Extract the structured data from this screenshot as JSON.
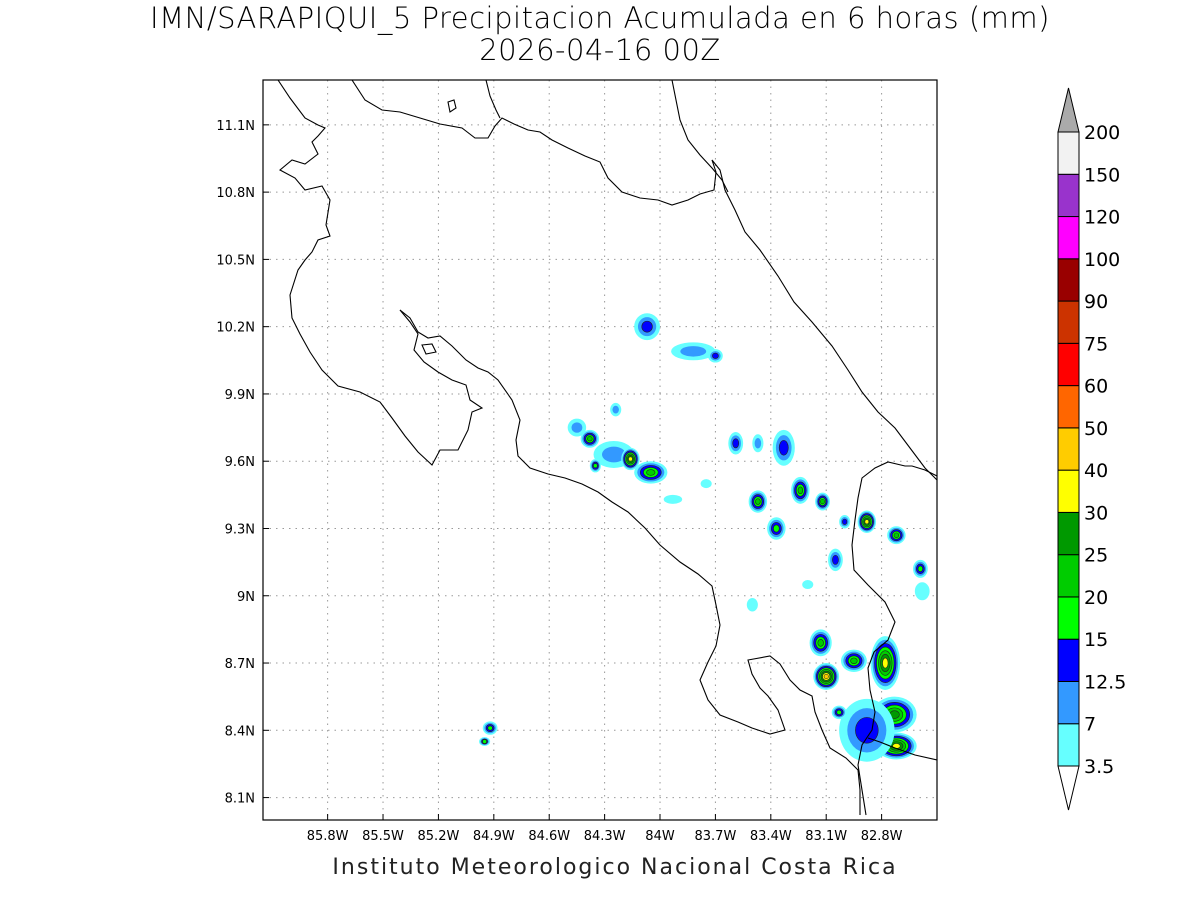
{
  "header": {
    "title": "IMN/SARAPIQUI_5 Precipitacion Acumulada en 6 horas (mm)",
    "subtitle": "2026-04-16 00Z"
  },
  "footer": {
    "text": "Instituto Meteorologico Nacional Costa Rica"
  },
  "map": {
    "lon_range": [
      -86.15,
      -82.5
    ],
    "lat_range": [
      8.0,
      11.3
    ],
    "lon_ticks": [
      {
        "value": -85.8,
        "label": "85.8W"
      },
      {
        "value": -85.5,
        "label": "85.5W"
      },
      {
        "value": -85.2,
        "label": "85.2W"
      },
      {
        "value": -84.9,
        "label": "84.9W"
      },
      {
        "value": -84.6,
        "label": "84.6W"
      },
      {
        "value": -84.3,
        "label": "84.3W"
      },
      {
        "value": -84.0,
        "label": "84W"
      },
      {
        "value": -83.7,
        "label": "83.7W"
      },
      {
        "value": -83.4,
        "label": "83.4W"
      },
      {
        "value": -83.1,
        "label": "83.1W"
      },
      {
        "value": -82.8,
        "label": "82.8W"
      }
    ],
    "lat_ticks": [
      {
        "value": 8.1,
        "label": "8.1N"
      },
      {
        "value": 8.4,
        "label": "8.4N"
      },
      {
        "value": 8.7,
        "label": "8.7N"
      },
      {
        "value": 9.0,
        "label": "9N"
      },
      {
        "value": 9.3,
        "label": "9.3N"
      },
      {
        "value": 9.6,
        "label": "9.6N"
      },
      {
        "value": 9.9,
        "label": "9.9N"
      },
      {
        "value": 10.2,
        "label": "10.2N"
      },
      {
        "value": 10.5,
        "label": "10.5N"
      },
      {
        "value": 10.8,
        "label": "10.8N"
      },
      {
        "value": 11.1,
        "label": "11.1N"
      }
    ],
    "grid": true,
    "precip_cells": [
      {
        "lon": -84.07,
        "lat": 10.2,
        "rx": 0.07,
        "ry": 0.06,
        "level": 2
      },
      {
        "lon": -83.82,
        "lat": 10.09,
        "rx": 0.12,
        "ry": 0.04,
        "level": 1
      },
      {
        "lon": -83.7,
        "lat": 10.07,
        "rx": 0.04,
        "ry": 0.03,
        "level": 2
      },
      {
        "lon": -84.45,
        "lat": 9.75,
        "rx": 0.05,
        "ry": 0.04,
        "level": 1
      },
      {
        "lon": -84.38,
        "lat": 9.7,
        "rx": 0.05,
        "ry": 0.04,
        "level": 4
      },
      {
        "lon": -84.25,
        "lat": 9.63,
        "rx": 0.11,
        "ry": 0.06,
        "level": 1
      },
      {
        "lon": -84.16,
        "lat": 9.61,
        "rx": 0.05,
        "ry": 0.05,
        "level": 6
      },
      {
        "lon": -84.05,
        "lat": 9.55,
        "rx": 0.09,
        "ry": 0.05,
        "level": 4
      },
      {
        "lon": -84.35,
        "lat": 9.58,
        "rx": 0.03,
        "ry": 0.03,
        "level": 3
      },
      {
        "lon": -84.24,
        "lat": 9.83,
        "rx": 0.03,
        "ry": 0.03,
        "level": 1
      },
      {
        "lon": -83.93,
        "lat": 9.43,
        "rx": 0.05,
        "ry": 0.02,
        "level": 0
      },
      {
        "lon": -83.59,
        "lat": 9.68,
        "rx": 0.04,
        "ry": 0.05,
        "level": 2
      },
      {
        "lon": -83.47,
        "lat": 9.68,
        "rx": 0.03,
        "ry": 0.04,
        "level": 1
      },
      {
        "lon": -83.33,
        "lat": 9.66,
        "rx": 0.06,
        "ry": 0.08,
        "level": 2
      },
      {
        "lon": -83.47,
        "lat": 9.42,
        "rx": 0.05,
        "ry": 0.05,
        "level": 4
      },
      {
        "lon": -83.37,
        "lat": 9.3,
        "rx": 0.05,
        "ry": 0.05,
        "level": 3
      },
      {
        "lon": -83.24,
        "lat": 9.47,
        "rx": 0.05,
        "ry": 0.06,
        "level": 4
      },
      {
        "lon": -83.12,
        "lat": 9.42,
        "rx": 0.04,
        "ry": 0.04,
        "level": 4
      },
      {
        "lon": -83.0,
        "lat": 9.33,
        "rx": 0.03,
        "ry": 0.03,
        "level": 2
      },
      {
        "lon": -82.88,
        "lat": 9.33,
        "rx": 0.05,
        "ry": 0.05,
        "level": 6
      },
      {
        "lon": -82.72,
        "lat": 9.27,
        "rx": 0.05,
        "ry": 0.04,
        "level": 4
      },
      {
        "lon": -83.05,
        "lat": 9.16,
        "rx": 0.04,
        "ry": 0.05,
        "level": 2
      },
      {
        "lon": -82.59,
        "lat": 9.12,
        "rx": 0.04,
        "ry": 0.04,
        "level": 3
      },
      {
        "lon": -83.13,
        "lat": 8.79,
        "rx": 0.06,
        "ry": 0.06,
        "level": 4
      },
      {
        "lon": -82.95,
        "lat": 8.71,
        "rx": 0.07,
        "ry": 0.05,
        "level": 4
      },
      {
        "lon": -83.1,
        "lat": 8.64,
        "rx": 0.07,
        "ry": 0.06,
        "level": 7
      },
      {
        "lon": -82.78,
        "lat": 8.7,
        "rx": 0.08,
        "ry": 0.12,
        "level": 6
      },
      {
        "lon": -82.73,
        "lat": 8.47,
        "rx": 0.12,
        "ry": 0.08,
        "level": 5
      },
      {
        "lon": -82.72,
        "lat": 8.33,
        "rx": 0.11,
        "ry": 0.06,
        "level": 6
      },
      {
        "lon": -82.88,
        "lat": 8.4,
        "rx": 0.15,
        "ry": 0.14,
        "level": 2
      },
      {
        "lon": -83.03,
        "lat": 8.48,
        "rx": 0.04,
        "ry": 0.03,
        "level": 3
      },
      {
        "lon": -84.92,
        "lat": 8.41,
        "rx": 0.04,
        "ry": 0.03,
        "level": 3
      },
      {
        "lon": -84.95,
        "lat": 8.35,
        "rx": 0.03,
        "ry": 0.02,
        "level": 3
      },
      {
        "lon": -83.2,
        "lat": 9.05,
        "rx": 0.03,
        "ry": 0.02,
        "level": 0
      },
      {
        "lon": -83.5,
        "lat": 8.96,
        "rx": 0.03,
        "ry": 0.03,
        "level": 0
      },
      {
        "lon": -83.75,
        "lat": 9.5,
        "rx": 0.03,
        "ry": 0.02,
        "level": 0
      },
      {
        "lon": -82.58,
        "lat": 9.02,
        "rx": 0.04,
        "ry": 0.04,
        "level": 0
      }
    ]
  },
  "colorbar": {
    "levels": [
      "3.5",
      "7",
      "12.5",
      "15",
      "20",
      "25",
      "30",
      "40",
      "50",
      "60",
      "75",
      "90",
      "100",
      "120",
      "150",
      "200"
    ],
    "colors": [
      "#66ffff",
      "#3399ff",
      "#0000ff",
      "#00ff00",
      "#00cc00",
      "#009900",
      "#ffff00",
      "#ffcc00",
      "#ff6600",
      "#ff0000",
      "#cc3300",
      "#990000",
      "#ff00ff",
      "#9933cc",
      "#f2f2f2"
    ],
    "over_color": "#aaaaaa",
    "under_color": "#ffffff"
  }
}
